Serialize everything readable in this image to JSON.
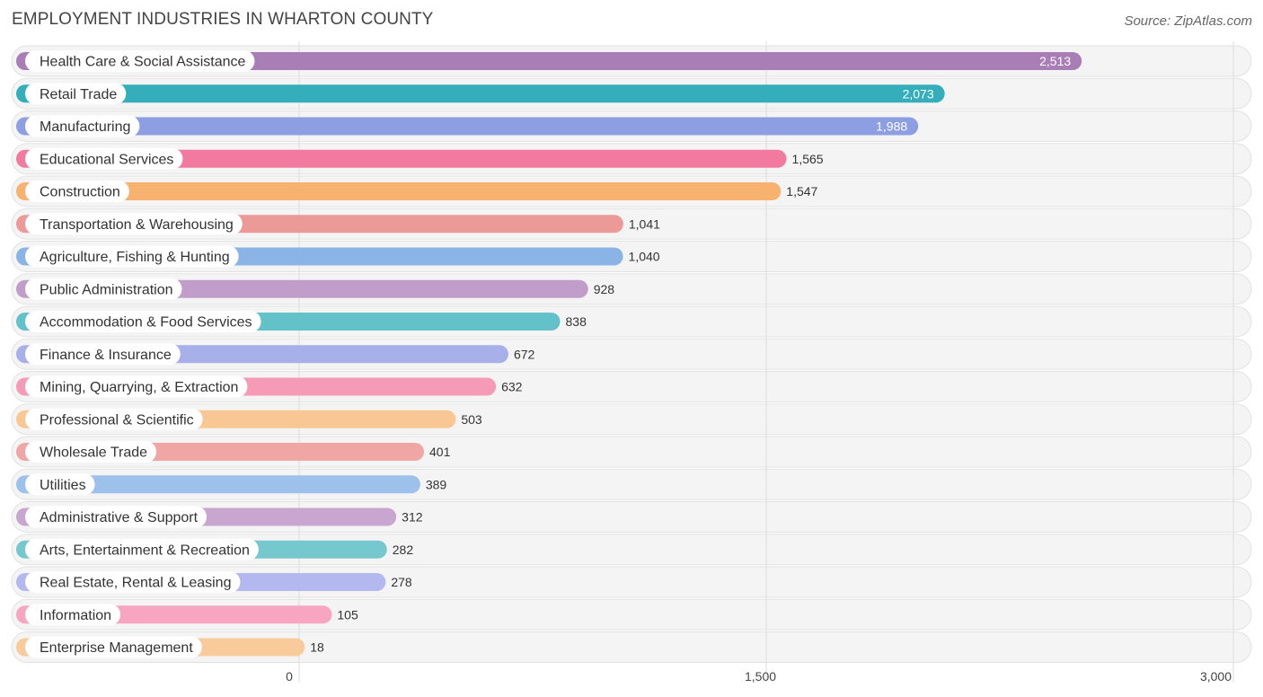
{
  "header": {
    "title": "EMPLOYMENT INDUSTRIES IN WHARTON COUNTY",
    "source": "Source: ZipAtlas.com"
  },
  "chart_data": {
    "type": "bar",
    "orientation": "horizontal",
    "title": "EMPLOYMENT INDUSTRIES IN WHARTON COUNTY",
    "xlabel": "",
    "ylabel": "",
    "xlim": [
      0,
      3000
    ],
    "ticks": [
      0,
      1500,
      3000
    ],
    "tick_labels": [
      "0",
      "1,500",
      "3,000"
    ],
    "grid": true,
    "categories": [
      "Health Care & Social Assistance",
      "Retail Trade",
      "Manufacturing",
      "Educational Services",
      "Construction",
      "Transportation & Warehousing",
      "Agriculture, Fishing & Hunting",
      "Public Administration",
      "Accommodation & Food Services",
      "Finance & Insurance",
      "Mining, Quarrying, & Extraction",
      "Professional & Scientific",
      "Wholesale Trade",
      "Utilities",
      "Administrative & Support",
      "Arts, Entertainment & Recreation",
      "Real Estate, Rental & Leasing",
      "Information",
      "Enterprise Management"
    ],
    "values": [
      2513,
      2073,
      1988,
      1565,
      1547,
      1041,
      1040,
      928,
      838,
      672,
      632,
      503,
      401,
      389,
      312,
      282,
      278,
      105,
      18
    ],
    "value_labels": [
      "2,513",
      "2,073",
      "1,988",
      "1,565",
      "1,547",
      "1,041",
      "1,040",
      "928",
      "838",
      "672",
      "632",
      "503",
      "401",
      "389",
      "312",
      "282",
      "278",
      "105",
      "18"
    ],
    "colors": [
      "#a97db5",
      "#35aebb",
      "#8e9ee2",
      "#f2799f",
      "#f8b26f",
      "#eb9a98",
      "#8ab4e6",
      "#c09ec9",
      "#62c1c9",
      "#a8b0ea",
      "#f59bb8",
      "#f9c794",
      "#f0a6a5",
      "#9dc1ea",
      "#c8a6d0",
      "#76c8cf",
      "#b3b8ee",
      "#f7a5c1",
      "#f9cb9b"
    ]
  }
}
